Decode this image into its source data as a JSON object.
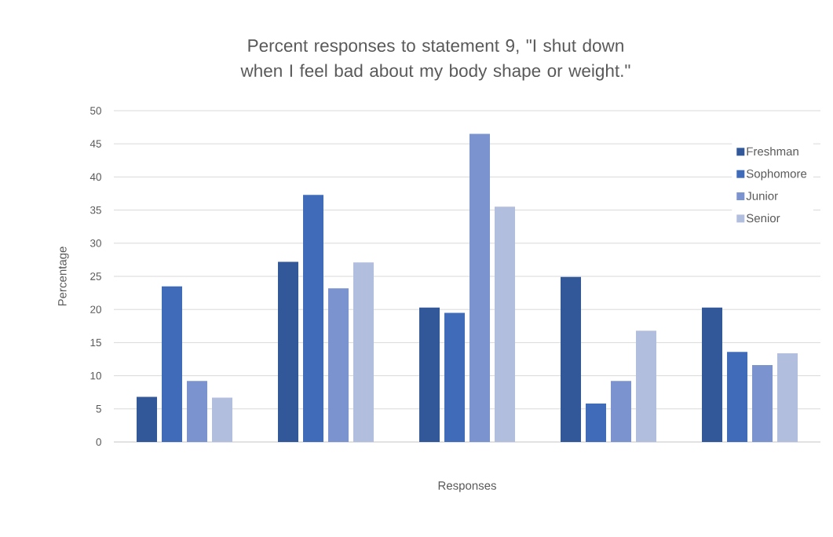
{
  "chart_data": {
    "type": "bar",
    "title": "Percent responses to statement 9, \"I shut down when I feel bad about my body shape or weight.\"",
    "xlabel": "Responses",
    "ylabel": "Percentage",
    "categories": [
      null,
      null,
      null,
      null,
      null
    ],
    "series": [
      {
        "name": "Freshman",
        "color": "#325899",
        "values": [
          6.8,
          27.2,
          20.3,
          24.9,
          20.3
        ]
      },
      {
        "name": "Sophomore",
        "color": "#3f6bb8",
        "values": [
          23.5,
          37.3,
          19.5,
          5.8,
          13.6
        ]
      },
      {
        "name": "Junior",
        "color": "#7b93ce",
        "values": [
          9.2,
          23.2,
          46.5,
          9.2,
          11.6
        ]
      },
      {
        "name": "Senior",
        "color": "#b2bede",
        "values": [
          6.7,
          27.1,
          35.5,
          16.8,
          13.4
        ]
      }
    ],
    "ylim": [
      0,
      50
    ],
    "yticks": [
      0,
      5,
      10,
      15,
      20,
      25,
      30,
      35,
      40,
      45,
      50
    ],
    "grid": "y",
    "legend": "top right",
    "tick_labels": "y"
  }
}
